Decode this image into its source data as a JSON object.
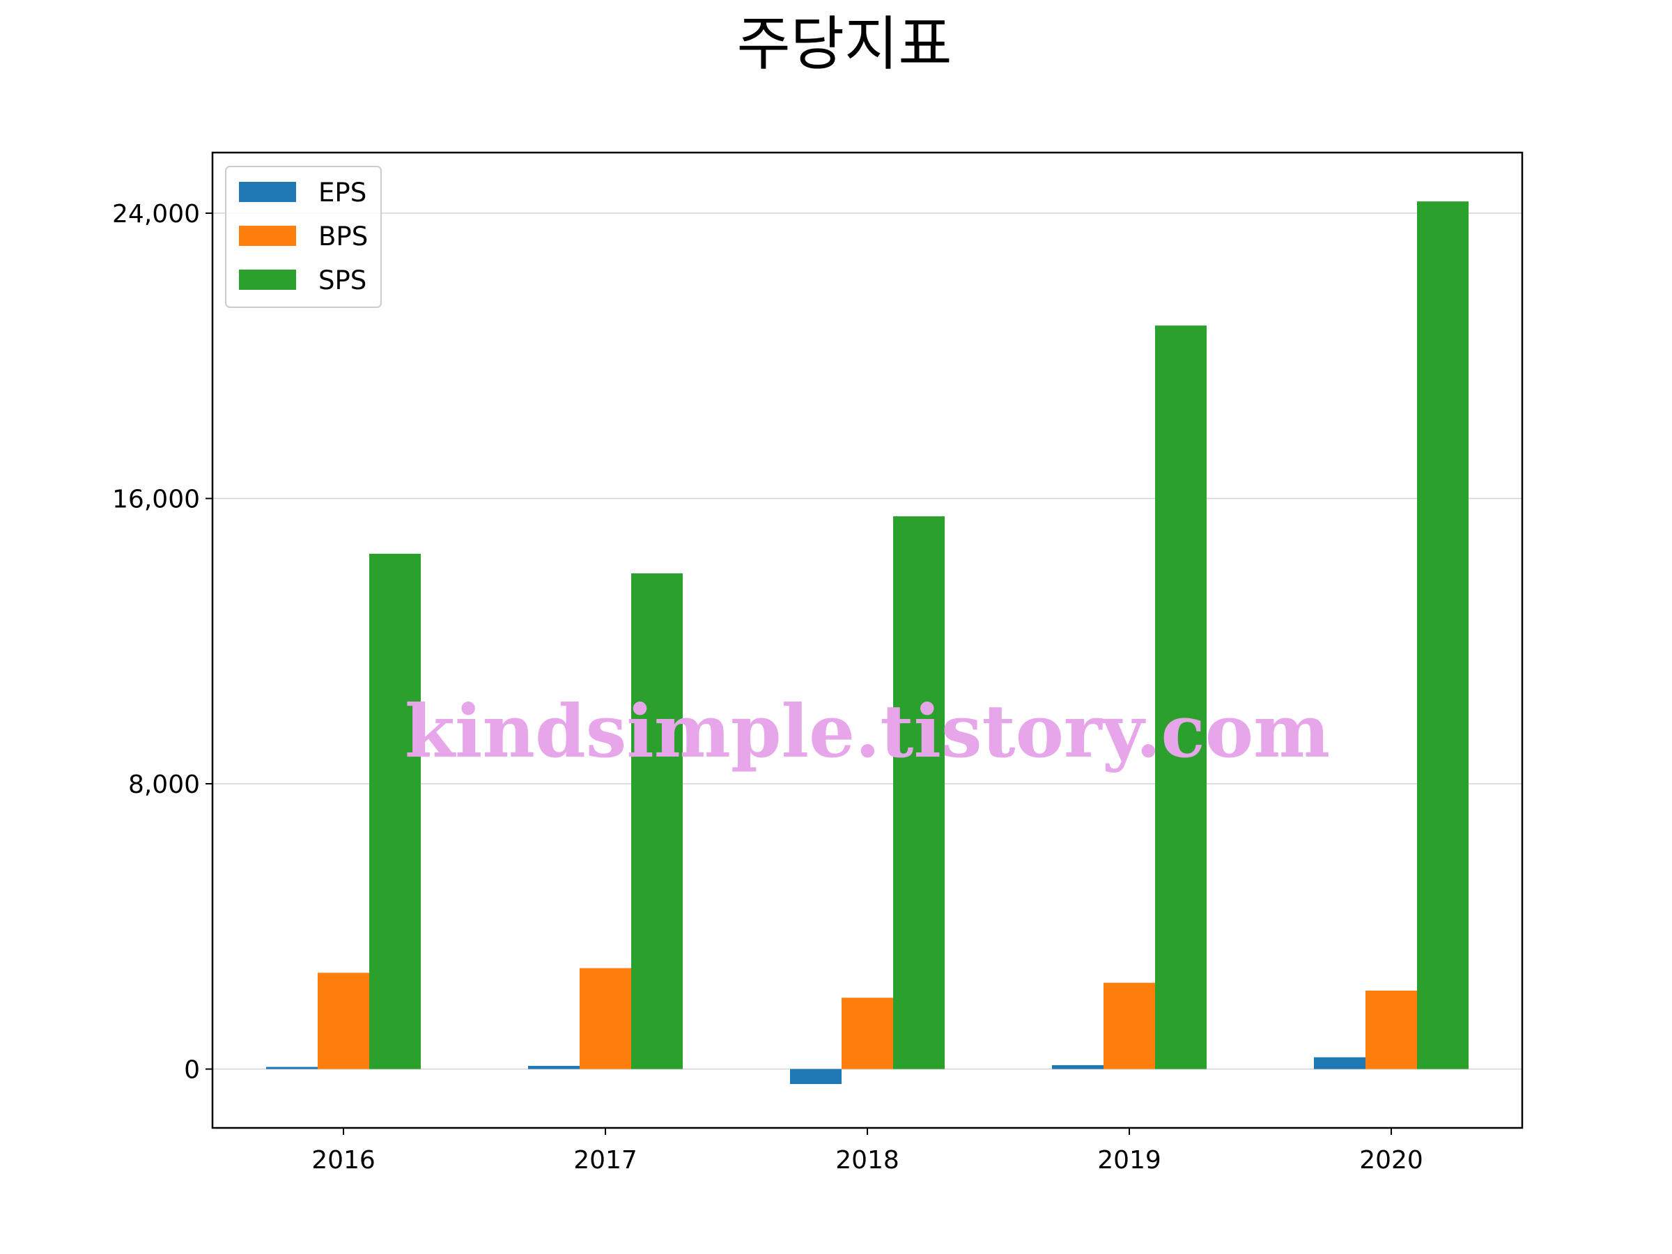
{
  "chart_data": {
    "type": "bar",
    "title": "주당지표",
    "xlabel": "",
    "ylabel": "",
    "categories": [
      "2016",
      "2017",
      "2018",
      "2019",
      "2020"
    ],
    "series": [
      {
        "name": "EPS",
        "color": "#1f77b4",
        "values": [
          60,
          90,
          -420,
          110,
          330
        ]
      },
      {
        "name": "BPS",
        "color": "#ff7f0e",
        "values": [
          2700,
          2830,
          2000,
          2420,
          2200
        ]
      },
      {
        "name": "SPS",
        "color": "#2ca02c",
        "values": [
          14450,
          13900,
          15500,
          20850,
          24330
        ]
      }
    ],
    "ylim": [
      -1650,
      25700
    ],
    "yticks": [
      0,
      8000,
      16000,
      24000
    ],
    "ytick_labels": [
      "0",
      "8,000",
      "16,000",
      "24,000"
    ],
    "grid": true,
    "legend": "top-left",
    "watermark": "kindsimple.tistory.com"
  }
}
